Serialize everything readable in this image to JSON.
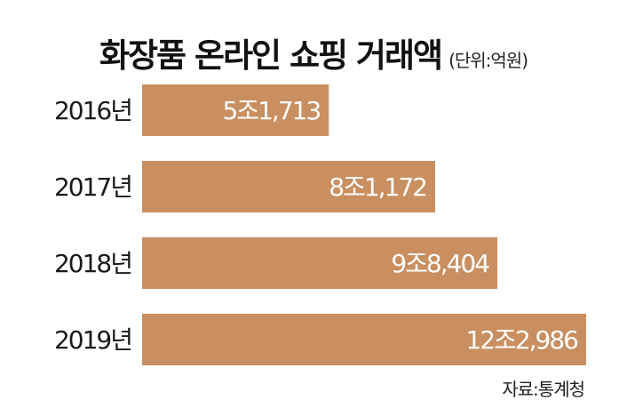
{
  "chart_data": {
    "type": "bar",
    "orientation": "horizontal",
    "title": "화장품 온라인 쇼핑 거래액",
    "unit_label": "(단위:억원)",
    "categories": [
      "2016년",
      "2017년",
      "2018년",
      "2019년"
    ],
    "values": [
      51713,
      81172,
      98404,
      122986
    ],
    "value_labels": [
      "5조1,713",
      "8조1,172",
      "9조8,404",
      "12조2,986"
    ],
    "bar_color": "#c98f60",
    "label_color": "#ffffff",
    "xlim": [
      0,
      122986
    ],
    "grid": false,
    "legend": "none"
  },
  "source": "자료:통계청"
}
